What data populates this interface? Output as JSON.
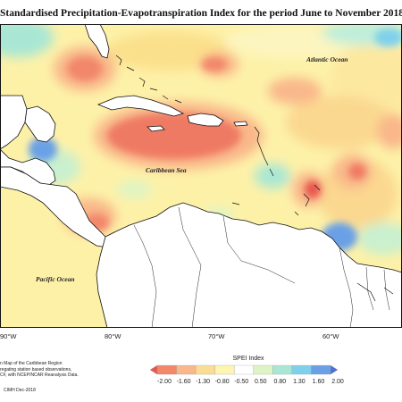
{
  "title": "Standardised Precipitation-Evapotranspiration Index for the period June to November 2018",
  "map": {
    "ocean_labels": {
      "atlantic": "Atlantic Ocean",
      "caribbean": "Caribbean Sea",
      "pacific": "Pacific Ocean"
    },
    "longitude_labels": [
      "90°W",
      "80°W",
      "70°W",
      "60°W"
    ]
  },
  "legend": {
    "title": "SPEI Index",
    "ticks": [
      "-2.00",
      "-1.60",
      "-1.30",
      "-0.80",
      "-0.50",
      "0.50",
      "0.80",
      "1.30",
      "1.60",
      "2.00"
    ],
    "colors": [
      "#e8574f",
      "#f2876a",
      "#f9b78a",
      "#fbdc94",
      "#fdf5b0",
      "#ffffff",
      "#dff4c4",
      "#a9e7d4",
      "#7fd0ea",
      "#6aa0e6",
      "#4f6fd8"
    ]
  },
  "footnote": {
    "lines": [
      "n Map of the Caribbean Region",
      "regating station based observations,",
      "CF, with NCEP/NCAR Reanalysis Data."
    ],
    "credit": "CIMH Dec-2018"
  },
  "colors": {
    "dry_strong": "#e8574f",
    "dry_moderate": "#f2876a",
    "dry_mild": "#f9b78a",
    "near_normal_dry": "#fbdc94",
    "near_normal": "#fdf5b0",
    "wet_mild": "#a9e7d4",
    "wet_moderate": "#7fd0ea",
    "wet_strong": "#6aa0e6",
    "wet_extreme": "#4f6fd8",
    "land": "#ffffff"
  }
}
